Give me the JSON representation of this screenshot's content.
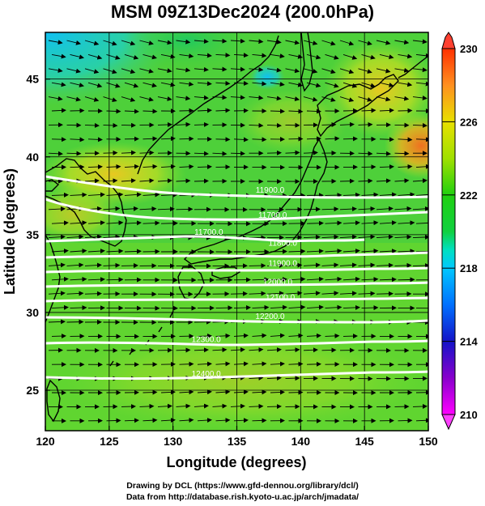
{
  "title": "MSM 09Z13Dec2024 (200.0hPa)",
  "map": {
    "xlabel": "Longitude (degrees)",
    "ylabel": "Latitude  (degrees)",
    "xlim": [
      120,
      150
    ],
    "ylim": [
      22.4,
      48
    ],
    "xticks": [
      "120",
      "125",
      "130",
      "135",
      "140",
      "145",
      "150"
    ],
    "yticks": [
      "25",
      "30",
      "35",
      "40",
      "45"
    ],
    "wind_direction": "west-to-east (westerly jet)"
  },
  "colorbar": {
    "min": 210,
    "max": 230,
    "ticks": [
      "210",
      "214",
      "218",
      "222",
      "226",
      "230"
    ],
    "colors": [
      "#ff00ff",
      "#8800cc",
      "#1414c8",
      "#0070ff",
      "#00c8ff",
      "#00e0c0",
      "#10d040",
      "#20d010",
      "#a0e000",
      "#e8e000",
      "#ff9020",
      "#ff3000"
    ]
  },
  "contours": {
    "color": "#ffffff",
    "labels": [
      {
        "text": "11900.0",
        "lat": 37.9,
        "lon": 137.6
      },
      {
        "text": "11700.0",
        "lat": 36.3,
        "lon": 137.8
      },
      {
        "text": "11700.0",
        "lat": 35.2,
        "lon": 132.8
      },
      {
        "text": "11800.0",
        "lat": 34.5,
        "lon": 138.6
      },
      {
        "text": "11900.0",
        "lat": 33.2,
        "lon": 138.6
      },
      {
        "text": "12000.0",
        "lat": 32.0,
        "lon": 138.2
      },
      {
        "text": "12100.0",
        "lat": 31.0,
        "lon": 138.4
      },
      {
        "text": "12200.0",
        "lat": 29.8,
        "lon": 137.6
      },
      {
        "text": "12300.0",
        "lat": 28.3,
        "lon": 132.6
      },
      {
        "text": "12400.0",
        "lat": 26.1,
        "lon": 132.6
      }
    ]
  },
  "credits": {
    "line1": "Drawing by DCL (https://www.gfd-dennou.org/library/dcl/)",
    "line2": "Data from http://database.rish.kyoto-u.ac.jp/arch/jmadata/"
  }
}
